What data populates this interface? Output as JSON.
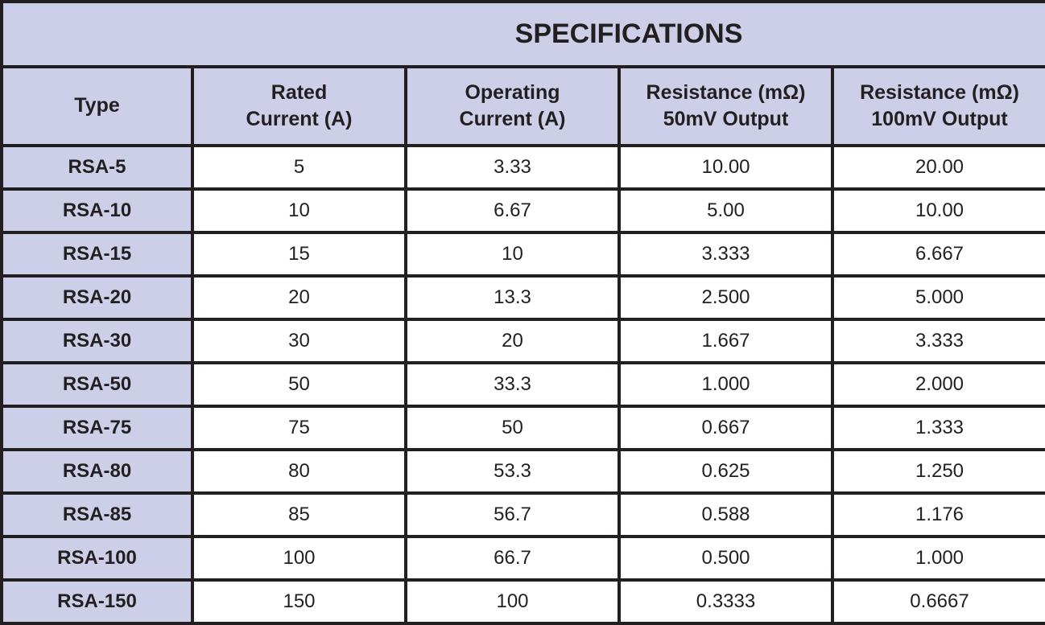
{
  "table": {
    "title": "SPECIFICATIONS",
    "header": [
      [
        "Type"
      ],
      [
        "Rated",
        "Current (A)"
      ],
      [
        "Operating",
        "Current (A)"
      ],
      [
        "Resistance (mΩ)",
        "50mV Output"
      ],
      [
        "Resistance (mΩ)",
        "100mV Output"
      ]
    ],
    "rows": [
      [
        "RSA-5",
        "5",
        "3.33",
        "10.00",
        "20.00"
      ],
      [
        "RSA-10",
        "10",
        "6.67",
        "5.00",
        "10.00"
      ],
      [
        "RSA-15",
        "15",
        "10",
        "3.333",
        "6.667"
      ],
      [
        "RSA-20",
        "20",
        "13.3",
        "2.500",
        "5.000"
      ],
      [
        "RSA-30",
        "30",
        "20",
        "1.667",
        "3.333"
      ],
      [
        "RSA-50",
        "50",
        "33.3",
        "1.000",
        "2.000"
      ],
      [
        "RSA-75",
        "75",
        "50",
        "0.667",
        "1.333"
      ],
      [
        "RSA-80",
        "80",
        "53.3",
        "0.625",
        "1.250"
      ],
      [
        "RSA-85",
        "85",
        "56.7",
        "0.588",
        "1.176"
      ],
      [
        "RSA-100",
        "100",
        "66.7",
        "0.500",
        "1.000"
      ],
      [
        "RSA-150",
        "150",
        "100",
        "0.3333",
        "0.6667"
      ]
    ]
  }
}
